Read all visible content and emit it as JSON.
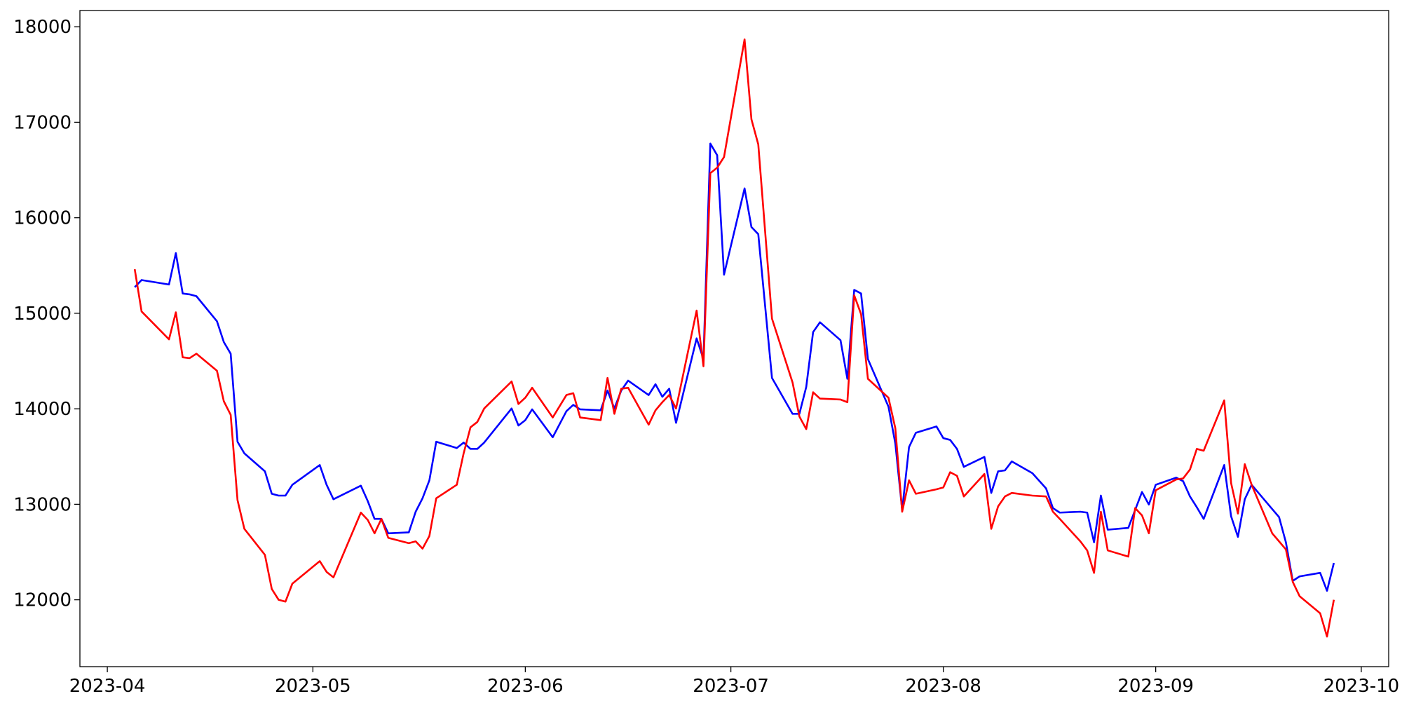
{
  "chart_data": {
    "type": "line",
    "x": [
      "2023-04-05",
      "2023-04-06",
      "2023-04-10",
      "2023-04-11",
      "2023-04-12",
      "2023-04-13",
      "2023-04-14",
      "2023-04-17",
      "2023-04-18",
      "2023-04-19",
      "2023-04-20",
      "2023-04-21",
      "2023-04-24",
      "2023-04-25",
      "2023-04-26",
      "2023-04-27",
      "2023-04-28",
      "2023-05-02",
      "2023-05-03",
      "2023-05-04",
      "2023-05-08",
      "2023-05-09",
      "2023-05-10",
      "2023-05-11",
      "2023-05-12",
      "2023-05-15",
      "2023-05-16",
      "2023-05-17",
      "2023-05-18",
      "2023-05-19",
      "2023-05-22",
      "2023-05-23",
      "2023-05-24",
      "2023-05-25",
      "2023-05-26",
      "2023-05-30",
      "2023-05-31",
      "2023-06-01",
      "2023-06-02",
      "2023-06-05",
      "2023-06-07",
      "2023-06-08",
      "2023-06-09",
      "2023-06-12",
      "2023-06-13",
      "2023-06-14",
      "2023-06-15",
      "2023-06-16",
      "2023-06-19",
      "2023-06-20",
      "2023-06-21",
      "2023-06-22",
      "2023-06-23",
      "2023-06-26",
      "2023-06-27",
      "2023-06-28",
      "2023-06-29",
      "2023-06-30",
      "2023-07-03",
      "2023-07-04",
      "2023-07-05",
      "2023-07-07",
      "2023-07-10",
      "2023-07-11",
      "2023-07-12",
      "2023-07-13",
      "2023-07-14",
      "2023-07-17",
      "2023-07-18",
      "2023-07-19",
      "2023-07-20",
      "2023-07-21",
      "2023-07-24",
      "2023-07-25",
      "2023-07-26",
      "2023-07-27",
      "2023-07-28",
      "2023-07-31",
      "2023-08-01",
      "2023-08-02",
      "2023-08-03",
      "2023-08-04",
      "2023-08-07",
      "2023-08-08",
      "2023-08-09",
      "2023-08-10",
      "2023-08-11",
      "2023-08-14",
      "2023-08-16",
      "2023-08-17",
      "2023-08-18",
      "2023-08-21",
      "2023-08-22",
      "2023-08-23",
      "2023-08-24",
      "2023-08-25",
      "2023-08-28",
      "2023-08-29",
      "2023-08-30",
      "2023-08-31",
      "2023-09-01",
      "2023-09-04",
      "2023-09-05",
      "2023-09-06",
      "2023-09-07",
      "2023-09-08",
      "2023-09-11",
      "2023-09-12",
      "2023-09-13",
      "2023-09-14",
      "2023-09-15",
      "2023-09-18",
      "2023-09-19",
      "2023-09-20",
      "2023-09-21",
      "2023-09-22",
      "2023-09-25",
      "2023-09-26",
      "2023-09-27"
    ],
    "series": [
      {
        "color": "#0000ff",
        "values": [
          15273,
          15348,
          15301,
          15630,
          15207,
          15198,
          15179,
          14916,
          14699,
          14577,
          13655,
          13533,
          13345,
          13110,
          13091,
          13091,
          13204,
          13411,
          13204,
          13053,
          13195,
          13035,
          12847,
          12847,
          12696,
          12706,
          12922,
          13063,
          13251,
          13655,
          13589,
          13646,
          13580,
          13580,
          13646,
          14003,
          13825,
          13881,
          13994,
          13702,
          13975,
          14041,
          13994,
          13984,
          14191,
          14003,
          14191,
          14295,
          14144,
          14257,
          14126,
          14210,
          13853,
          14737,
          14520,
          16777,
          16655,
          15404,
          16307,
          15903,
          15828,
          14323,
          13947,
          13947,
          14229,
          14803,
          14906,
          14718,
          14314,
          15245,
          15207,
          14520,
          14022,
          13637,
          12941,
          13599,
          13749,
          13815,
          13693,
          13674,
          13580,
          13392,
          13496,
          13119,
          13345,
          13355,
          13449,
          13326,
          13166,
          12960,
          12913,
          12922,
          12913,
          12602,
          13091,
          12734,
          12753,
          12941,
          13129,
          12997,
          13204,
          13279,
          13242,
          13082,
          12969,
          12847,
          13411,
          12875,
          12659,
          13053,
          13204,
          12950,
          12866,
          12602,
          12198,
          12245,
          12282,
          12094,
          12386
        ]
      },
      {
        "color": "#ff0000",
        "values": [
          15461,
          15019,
          14727,
          15010,
          14539,
          14530,
          14577,
          14398,
          14079,
          13937,
          13044,
          12743,
          12470,
          12113,
          12000,
          11981,
          12169,
          12405,
          12292,
          12235,
          12913,
          12837,
          12696,
          12847,
          12649,
          12593,
          12612,
          12536,
          12668,
          13063,
          13204,
          13533,
          13806,
          13862,
          14003,
          14286,
          14050,
          14116,
          14220,
          13909,
          14144,
          14163,
          13909,
          13881,
          14323,
          13947,
          14210,
          14220,
          13834,
          13984,
          14069,
          14144,
          14003,
          15028,
          14445,
          16467,
          16524,
          16636,
          17868,
          17031,
          16768,
          14944,
          14276,
          13919,
          13787,
          14173,
          14107,
          14097,
          14069,
          15188,
          14991,
          14314,
          14116,
          13796,
          12922,
          13251,
          13110,
          13157,
          13176,
          13336,
          13298,
          13082,
          13317,
          12743,
          12978,
          13082,
          13119,
          13091,
          13082,
          12922,
          12847,
          12612,
          12517,
          12282,
          12922,
          12517,
          12452,
          12960,
          12884,
          12696,
          13147,
          13260,
          13270,
          13364,
          13580,
          13561,
          14088,
          13223,
          12903,
          13420,
          13204,
          12696,
          12612,
          12527,
          12188,
          12038,
          11859,
          11615,
          12000
        ]
      }
    ],
    "xlim": [
      "2023-03-28",
      "2023-10-05"
    ],
    "xticks": [
      {
        "value": "2023-04-01",
        "label": "2023-04"
      },
      {
        "value": "2023-05-01",
        "label": "2023-05"
      },
      {
        "value": "2023-06-01",
        "label": "2023-06"
      },
      {
        "value": "2023-07-01",
        "label": "2023-07"
      },
      {
        "value": "2023-08-01",
        "label": "2023-08"
      },
      {
        "value": "2023-09-01",
        "label": "2023-09"
      },
      {
        "value": "2023-10-01",
        "label": "2023-10"
      }
    ],
    "ylim": [
      11300,
      18170
    ],
    "yticks": [
      12000,
      13000,
      14000,
      15000,
      16000,
      17000,
      18000
    ],
    "grid": false
  }
}
